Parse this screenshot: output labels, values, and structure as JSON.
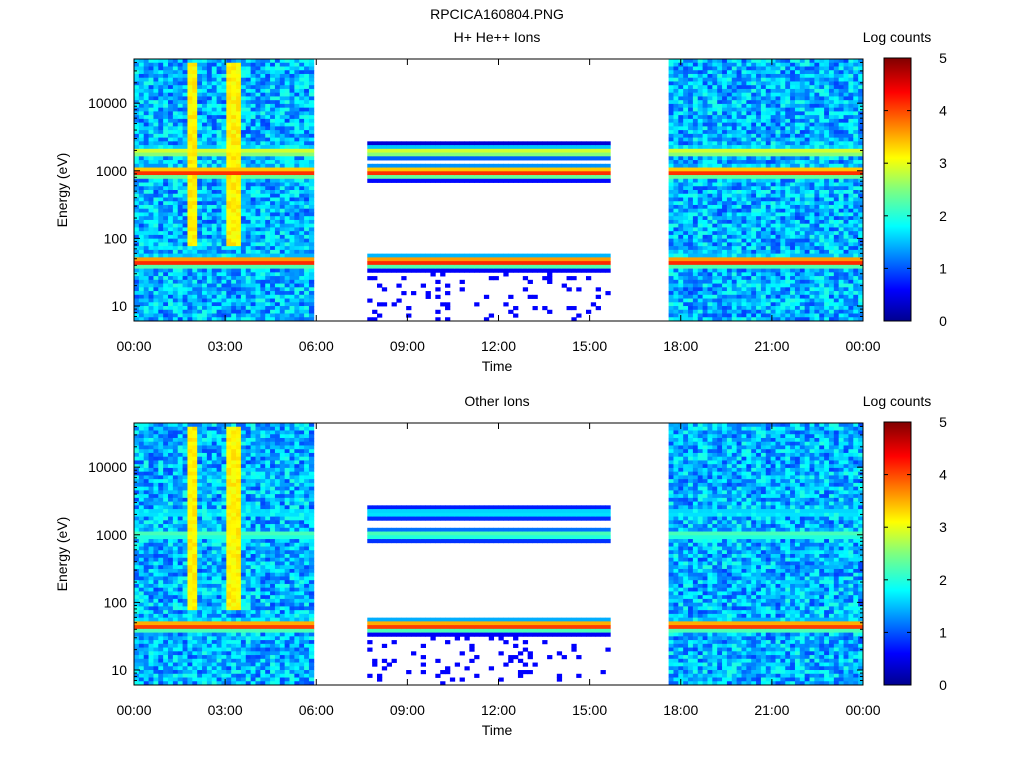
{
  "figure_title": "RPCICA160804.PNG",
  "chart_data": [
    {
      "type": "heatmap",
      "title": "H+ He++ Ions",
      "xlabel": "Time",
      "ylabel": "Energy (eV)",
      "y_scale": "log",
      "ylim": [
        6,
        45000
      ],
      "xlim_hours": [
        0,
        24
      ],
      "x_ticks": [
        "00:00",
        "03:00",
        "06:00",
        "09:00",
        "12:00",
        "15:00",
        "18:00",
        "21:00",
        "00:00"
      ],
      "y_ticks": [
        "10",
        "100",
        "1000",
        "10000"
      ],
      "colorbar": {
        "label": "Log counts",
        "range": [
          0,
          5
        ],
        "ticks": [
          "0",
          "1",
          "2",
          "3",
          "4",
          "5"
        ]
      },
      "data_gaps_hours": [
        [
          5.95,
          7.6
        ],
        [
          15.75,
          17.6
        ]
      ],
      "bands": [
        {
          "energy_eV": 45,
          "log_counts": 4.3
        },
        {
          "energy_eV": 950,
          "log_counts": 4.2
        },
        {
          "energy_eV": 1900,
          "log_counts": 3.0
        }
      ]
    },
    {
      "type": "heatmap",
      "title": "Other Ions",
      "xlabel": "Time",
      "ylabel": "Energy (eV)",
      "y_scale": "log",
      "ylim": [
        6,
        45000
      ],
      "xlim_hours": [
        0,
        24
      ],
      "x_ticks": [
        "00:00",
        "03:00",
        "06:00",
        "09:00",
        "12:00",
        "15:00",
        "18:00",
        "21:00",
        "00:00"
      ],
      "y_ticks": [
        "10",
        "100",
        "1000",
        "10000"
      ],
      "colorbar": {
        "label": "Log counts",
        "range": [
          0,
          5
        ],
        "ticks": [
          "0",
          "1",
          "2",
          "3",
          "4",
          "5"
        ]
      },
      "data_gaps_hours": [
        [
          5.95,
          7.6
        ],
        [
          15.75,
          17.6
        ]
      ],
      "bands": [
        {
          "energy_eV": 45,
          "log_counts": 4.2
        },
        {
          "energy_eV": 1000,
          "log_counts": 2.3
        },
        {
          "energy_eV": 2100,
          "log_counts": 1.8
        }
      ]
    }
  ]
}
